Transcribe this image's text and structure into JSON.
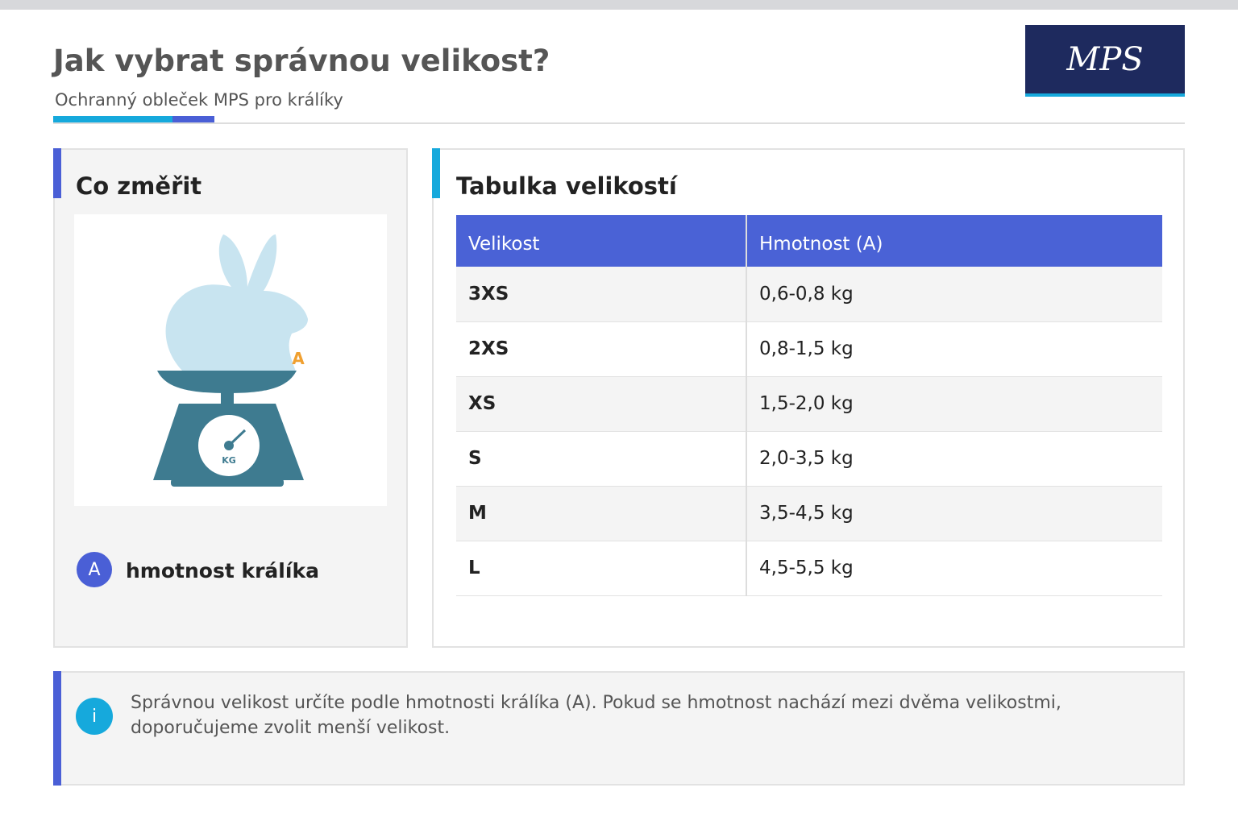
{
  "header": {
    "title": "Jak vybrat správnou velikost?",
    "subtitle": "Ochranný obleček MPS pro králíky",
    "logo": "MPS"
  },
  "measure_panel": {
    "title": "Co změřit",
    "illustration": {
      "marker": "A",
      "scale_unit": "KG"
    },
    "legend": {
      "badge": "A",
      "label": "hmotnost králíka"
    }
  },
  "size_panel": {
    "title": "Tabulka velikostí",
    "table": {
      "columns": [
        "Velikost",
        "Hmotnost (A)"
      ],
      "rows": [
        [
          "3XS",
          "0,6-0,8 kg"
        ],
        [
          "2XS",
          "0,8-1,5 kg"
        ],
        [
          "XS",
          "1,5-2,0 kg"
        ],
        [
          "S",
          "2,0-3,5 kg"
        ],
        [
          "M",
          "3,5-4,5 kg"
        ],
        [
          "L",
          "4,5-5,5 kg"
        ]
      ]
    }
  },
  "info": {
    "icon": "i",
    "text": "Správnou velikost určíte podle hmotnosti králíka (A). Pokud se hmotnost nachází mezi dvěma velikostmi, doporučujeme zvolit menší velikost."
  }
}
